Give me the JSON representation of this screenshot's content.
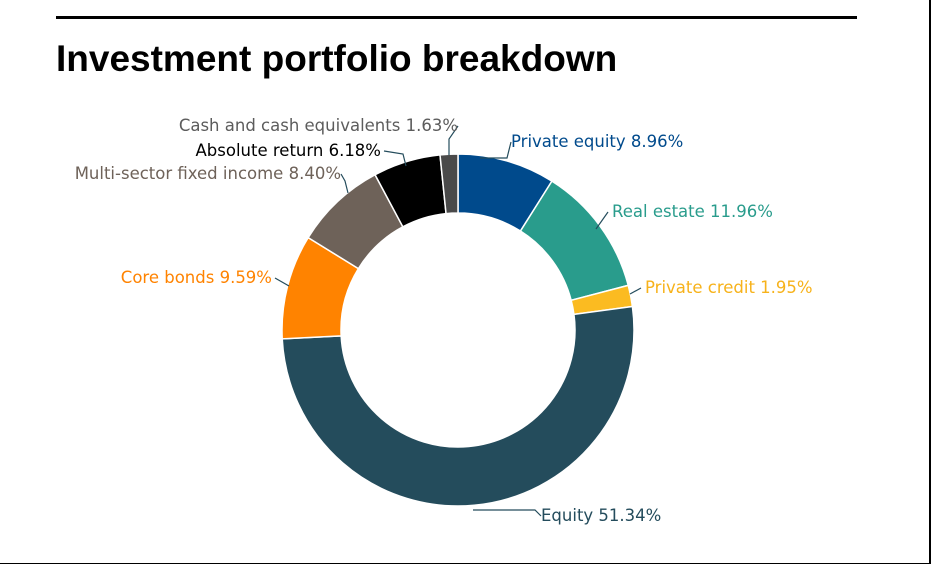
{
  "title": "Investment portfolio breakdown",
  "chart_data": {
    "type": "pie",
    "style": "donut",
    "title": "Investment portfolio breakdown",
    "slices": [
      {
        "label": "Private equity 8.96%",
        "name": "Private equity",
        "value": 8.96,
        "color": "#004a8c"
      },
      {
        "label": "Real estate 11.96%",
        "name": "Real estate",
        "value": 11.96,
        "color": "#299c8c"
      },
      {
        "label": "Private credit 1.95%",
        "name": "Private credit",
        "value": 1.95,
        "color": "#fbbb21"
      },
      {
        "label": "Equity 51.34%",
        "name": "Equity",
        "value": 51.34,
        "color": "#244c5c"
      },
      {
        "label": "Core bonds 9.59%",
        "name": "Core bonds",
        "value": 9.59,
        "color": "#ff8300"
      },
      {
        "label": "Multi-sector fixed income 8.40%",
        "name": "Multi-sector fixed income",
        "value": 8.4,
        "color": "#6e6259"
      },
      {
        "label": "Absolute return 6.18%",
        "name": "Absolute return",
        "value": 6.18,
        "color": "#000000"
      },
      {
        "label": "Cash and cash equivalents 1.63%",
        "name": "Cash and cash equivalents",
        "value": 1.63,
        "color": "#4a4a4a"
      }
    ],
    "label_colors": [
      "#004a8c",
      "#299c8c",
      "#f7b21a",
      "#244c5c",
      "#ff8300",
      "#6e6259",
      "#000000",
      "#5c5c5c"
    ],
    "start": "top",
    "direction": "clockwise"
  }
}
